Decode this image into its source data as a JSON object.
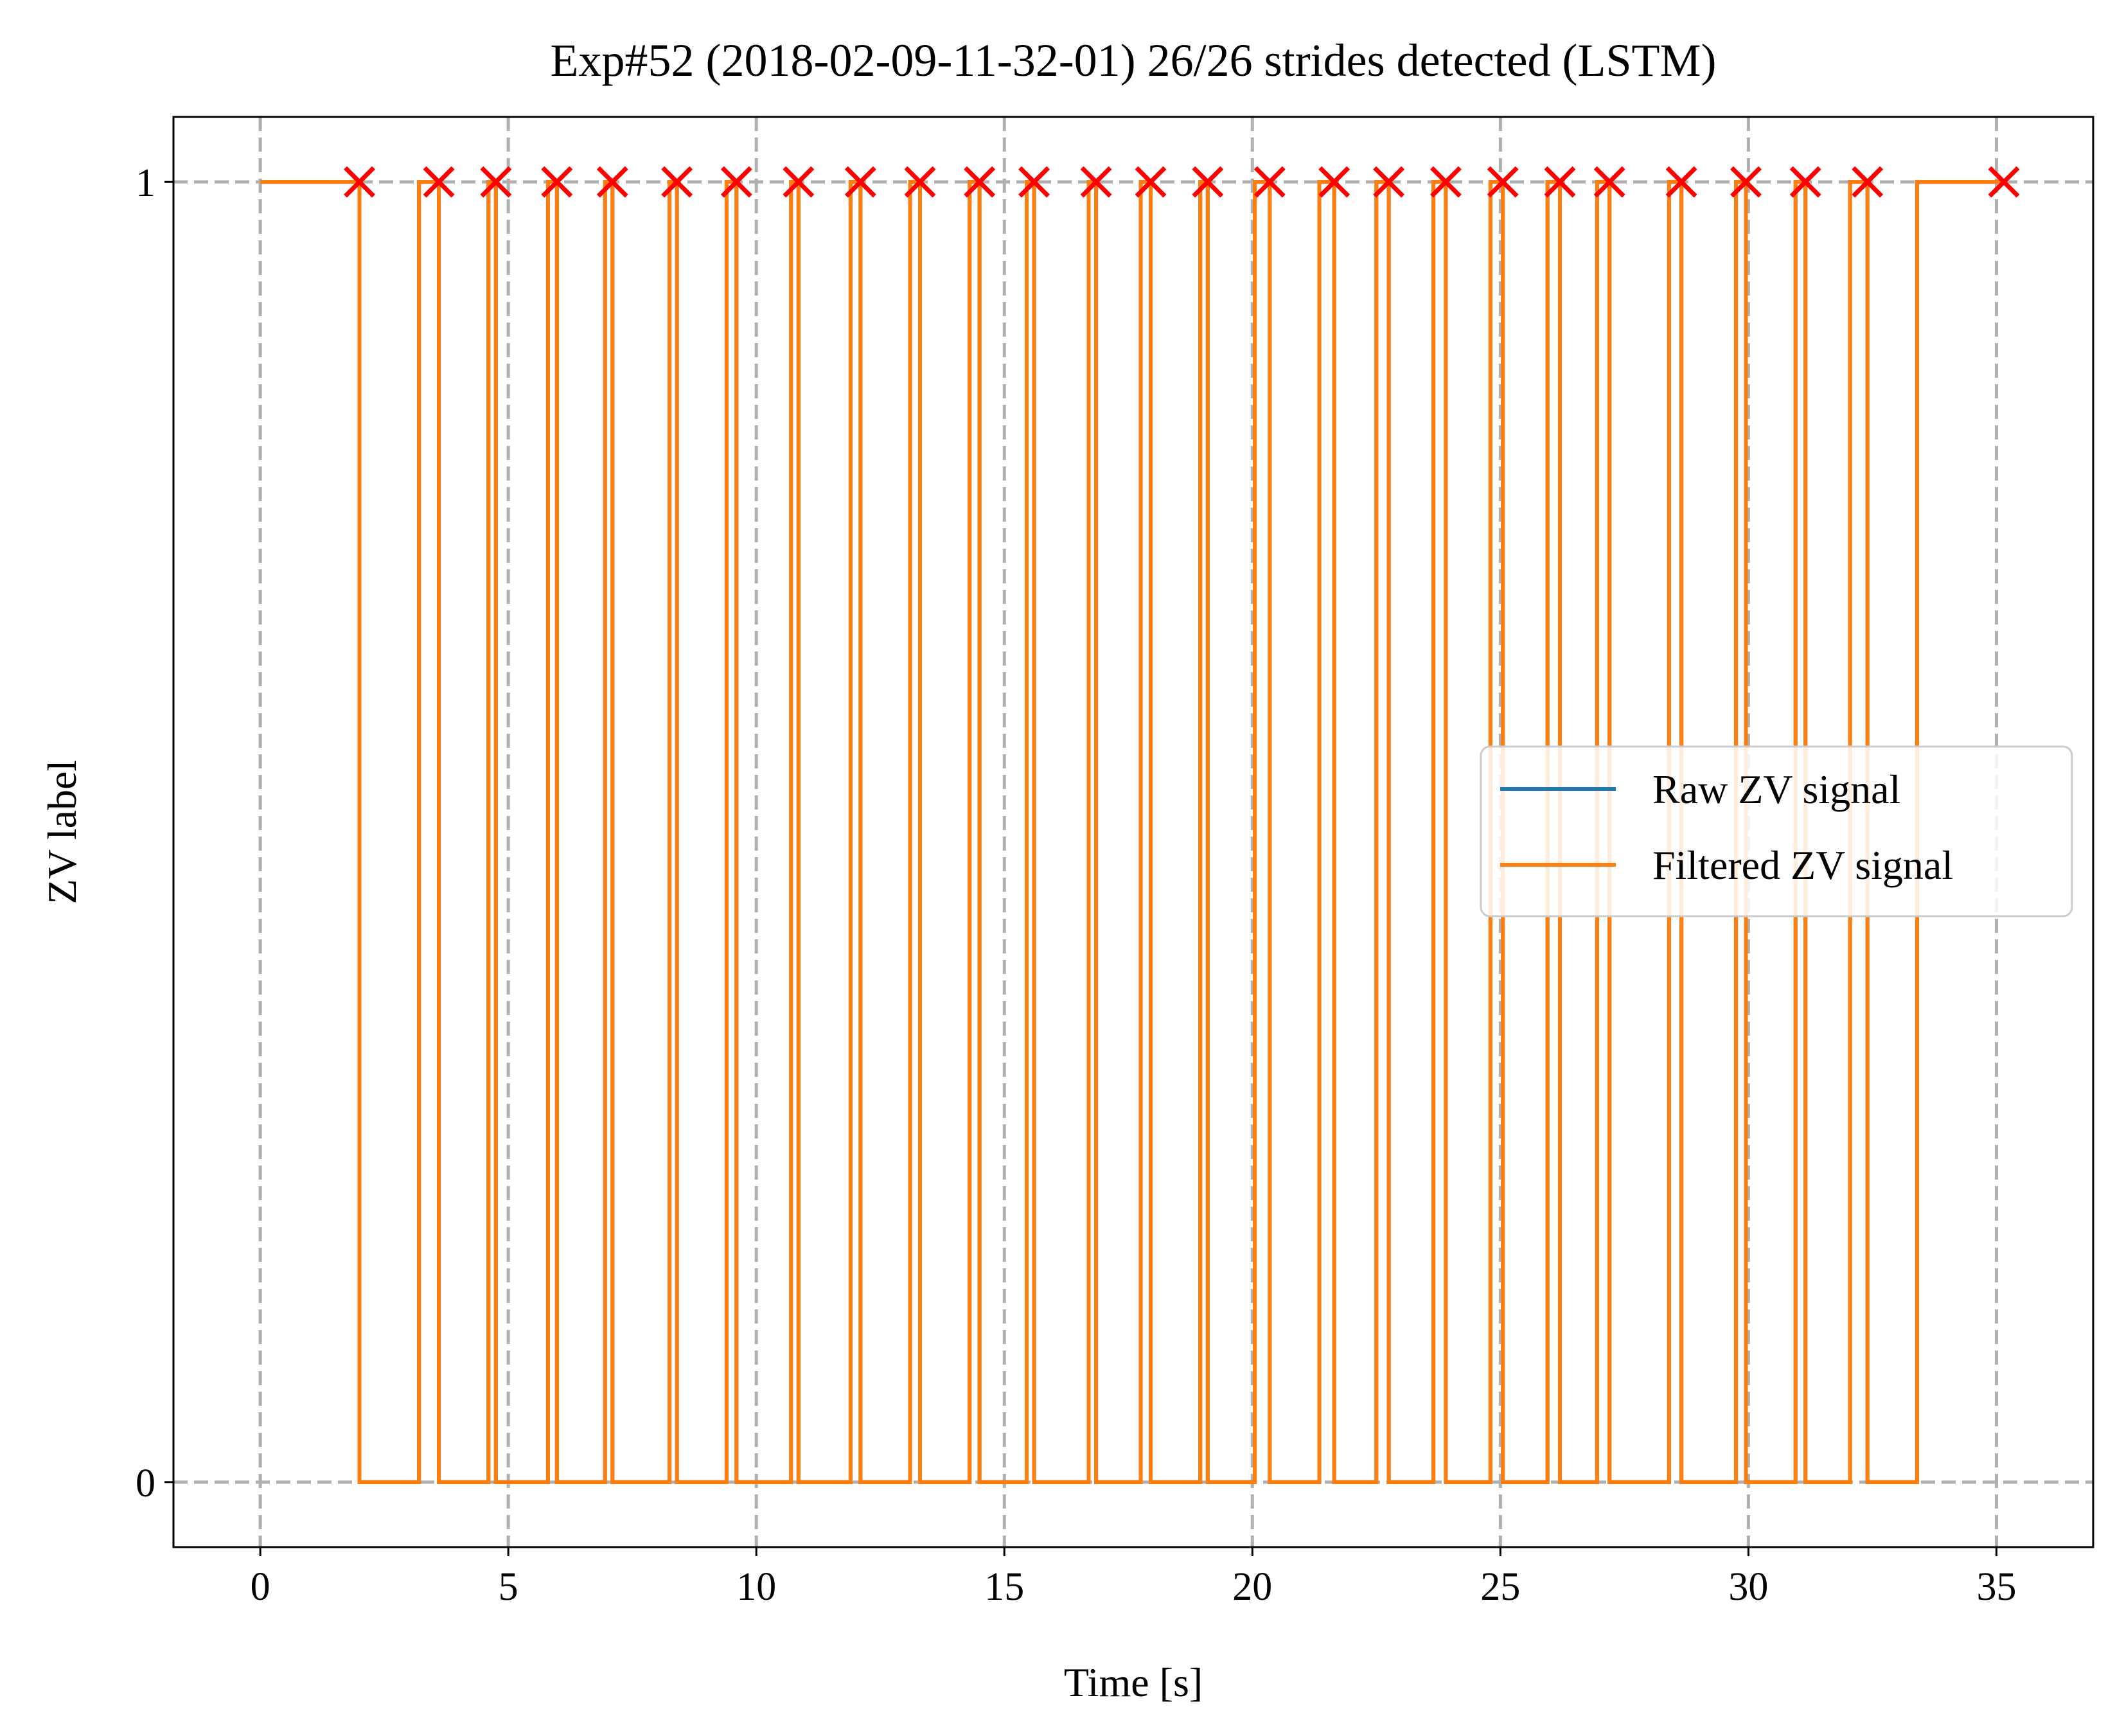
{
  "chart_data": {
    "type": "line",
    "title": "Exp#52 (2018-02-09-11-32-01) 26/26 strides detected (LSTM)",
    "xlabel": "Time [s]",
    "ylabel": "ZV label",
    "xlim": [
      -1.75,
      36.95
    ],
    "ylim": [
      -0.05,
      1.05
    ],
    "xticks": [
      0,
      5,
      10,
      15,
      20,
      25,
      30,
      35
    ],
    "yticks": [
      0,
      1
    ],
    "grid": true,
    "grid_style": "dashed",
    "legend_position": "center-right",
    "colors": {
      "raw": "#1f77b4",
      "filtered": "#ff7f0e",
      "marker": "#ff0000",
      "grid": "#b0b0b0"
    },
    "series": [
      {
        "name": "Raw ZV signal",
        "color": "#1f77b4",
        "step_transitions_s": [
          0,
          2.0,
          3.2,
          3.6,
          4.6,
          4.75,
          5.8,
          5.98,
          6.95,
          7.1,
          8.25,
          8.4,
          9.4,
          9.6,
          10.7,
          10.85,
          11.9,
          12.1,
          13.1,
          13.3,
          14.3,
          14.5,
          15.45,
          15.6,
          16.7,
          16.85,
          17.75,
          17.95,
          18.95,
          19.1,
          20.05,
          20.35,
          21.35,
          21.65,
          22.5,
          22.75,
          23.65,
          23.9,
          24.8,
          25.05,
          25.95,
          26.2,
          26.95,
          27.2,
          28.4,
          28.65,
          29.75,
          29.95,
          30.95,
          31.15,
          32.05,
          32.4,
          33.4,
          35.15
        ],
        "start_value": 1
      },
      {
        "name": "Filtered ZV signal",
        "color": "#ff7f0e",
        "step_transitions_s": [
          0,
          2.0,
          3.2,
          3.6,
          4.6,
          4.75,
          5.8,
          5.98,
          6.95,
          7.1,
          8.25,
          8.4,
          9.4,
          9.6,
          10.7,
          10.85,
          11.9,
          12.1,
          13.1,
          13.3,
          14.3,
          14.5,
          15.45,
          15.6,
          16.7,
          16.85,
          17.75,
          17.95,
          18.95,
          19.1,
          20.05,
          20.35,
          21.35,
          21.65,
          22.5,
          22.75,
          23.65,
          23.9,
          24.8,
          25.05,
          25.95,
          26.2,
          26.95,
          27.2,
          28.4,
          28.65,
          29.75,
          29.95,
          30.95,
          31.15,
          32.05,
          32.4,
          33.4,
          35.15
        ],
        "start_value": 1
      }
    ],
    "stride_markers": {
      "y": 1,
      "x": [
        2.0,
        3.6,
        4.75,
        5.98,
        7.1,
        8.4,
        9.6,
        10.85,
        12.1,
        13.3,
        14.5,
        15.6,
        16.85,
        17.95,
        19.1,
        20.35,
        21.65,
        22.75,
        23.9,
        25.05,
        26.2,
        27.2,
        28.65,
        29.95,
        31.15,
        32.4,
        35.15
      ]
    }
  }
}
